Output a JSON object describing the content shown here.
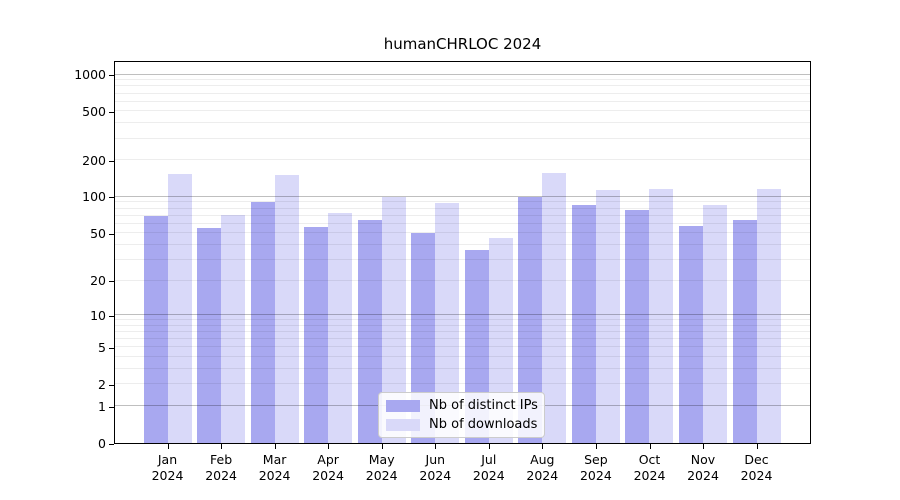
{
  "title": "humanCHRLOC 2024",
  "legend": {
    "items": [
      {
        "label": "Nb of distinct IPs",
        "color": "#a8a8f0"
      },
      {
        "label": "Nb of downloads",
        "color": "#d9d9f9"
      }
    ],
    "position": "lower center"
  },
  "chart_data": {
    "type": "bar",
    "title": "humanCHRLOC 2024",
    "categories": [
      "Jan 2024",
      "Feb 2024",
      "Mar 2024",
      "Apr 2024",
      "May 2024",
      "Jun 2024",
      "Jul 2024",
      "Aug 2024",
      "Sep 2024",
      "Oct 2024",
      "Nov 2024",
      "Dec 2024"
    ],
    "series": [
      {
        "name": "Nb of distinct IPs",
        "color": "#a8a8f0",
        "values": [
          70,
          55,
          90,
          56,
          65,
          50,
          36,
          100,
          86,
          78,
          57,
          64
        ]
      },
      {
        "name": "Nb of downloads",
        "color": "#d9d9f9",
        "values": [
          155,
          71,
          152,
          73,
          100,
          89,
          46,
          157,
          114,
          116,
          86,
          116
        ]
      }
    ],
    "xlabel": "",
    "ylabel": "",
    "yscale": "log1p",
    "yticks": [
      0,
      1,
      2,
      5,
      10,
      20,
      50,
      100,
      200,
      500,
      1000
    ],
    "ylim": [
      0,
      1280
    ],
    "grid": "on",
    "grid_major_values": [
      1,
      10,
      100,
      1000
    ],
    "legend_position": "lower center"
  }
}
